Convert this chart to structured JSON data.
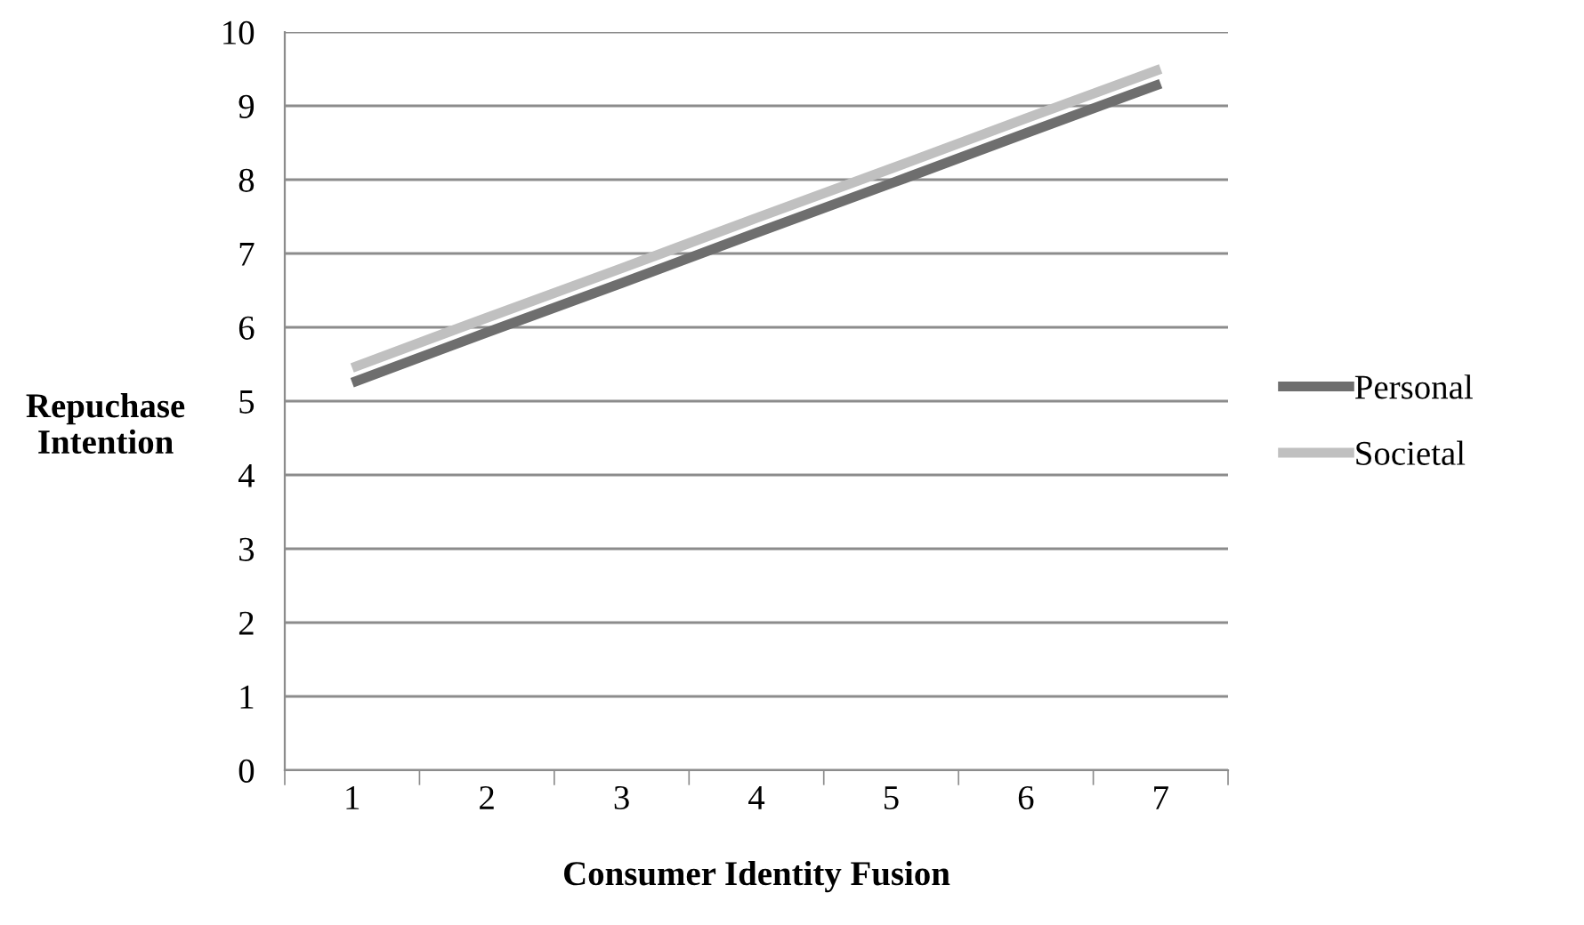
{
  "chart_data": {
    "type": "line",
    "xlabel": "Consumer Identity Fusion",
    "ylabel": "Repuchase\nIntention",
    "categories": [
      "1",
      "2",
      "3",
      "4",
      "5",
      "6",
      "7"
    ],
    "series": [
      {
        "name": "Personal",
        "color": "#6e6e6e",
        "values": [
          5.25,
          5.93,
          6.6,
          7.28,
          7.95,
          8.63,
          9.3
        ]
      },
      {
        "name": "Societal",
        "color": "#c0c0c0",
        "values": [
          5.45,
          6.13,
          6.8,
          7.48,
          8.15,
          8.83,
          9.5
        ]
      }
    ],
    "ylim": [
      0,
      10
    ],
    "yticks": [
      0,
      1,
      2,
      3,
      4,
      5,
      6,
      7,
      8,
      9,
      10
    ],
    "grid": "y",
    "legend": "right",
    "marker": "none",
    "line_style": "solid"
  }
}
